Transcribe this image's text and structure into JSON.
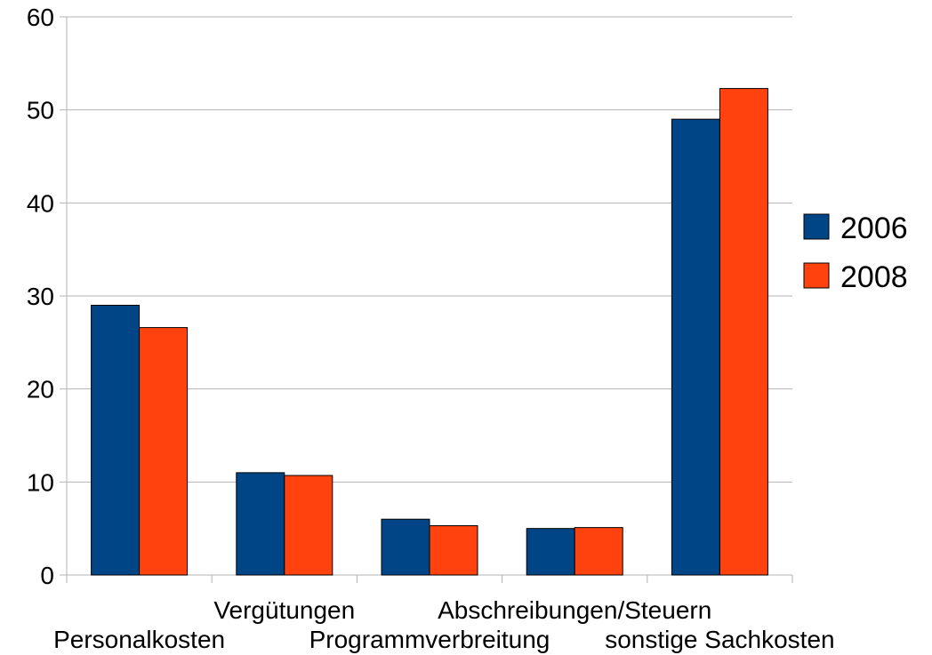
{
  "chart_data": {
    "type": "bar",
    "categories": [
      "Personalkosten",
      "Vergütungen",
      "Programmverbreitung",
      "Abschreibungen/Steuern",
      "sonstige Sachkosten"
    ],
    "series": [
      {
        "name": "2006",
        "values": [
          29,
          11,
          6,
          5,
          49
        ],
        "color": "#004586"
      },
      {
        "name": "2008",
        "values": [
          26.6,
          10.7,
          5.3,
          5.1,
          52.3
        ],
        "color": "#ff420e"
      }
    ],
    "ylim": [
      0,
      60
    ],
    "yticks": [
      0,
      10,
      20,
      30,
      40,
      50,
      60
    ],
    "grid": true,
    "legend_position": "right",
    "gridline_color": "#b3b3b3",
    "axis_color": "#b3b3b3",
    "bar_outline_color": "#000000"
  }
}
